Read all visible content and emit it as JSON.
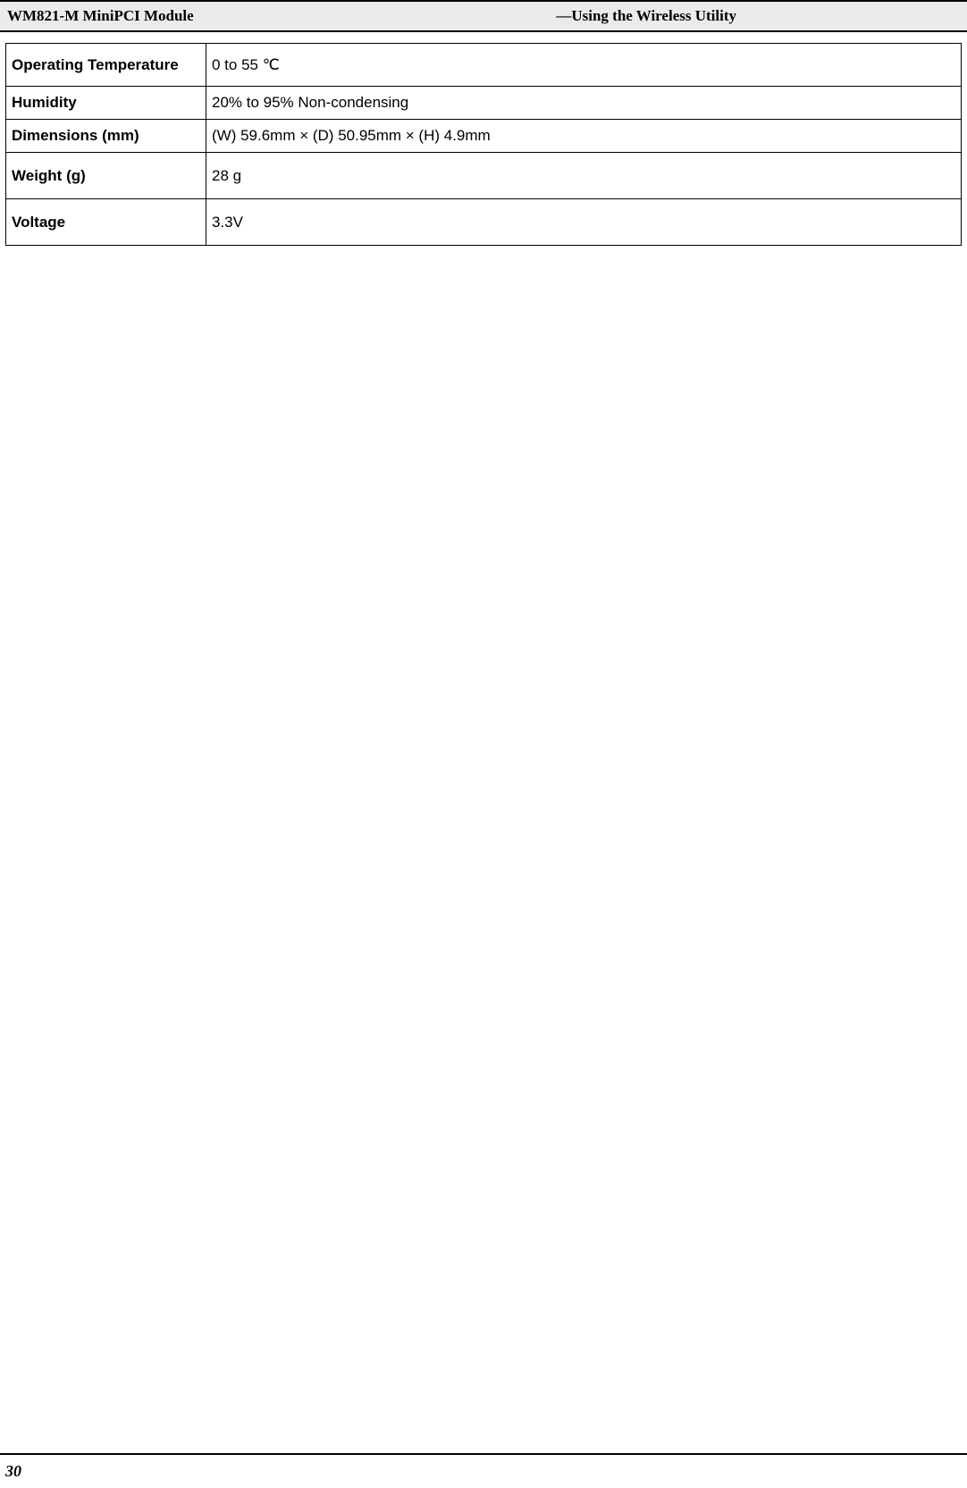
{
  "header": {
    "left": "WM821-M MiniPCI Module",
    "right": "—Using the Wireless Utility"
  },
  "table": {
    "rows": [
      {
        "label": "Operating Temperature",
        "value": "0 to 55 ℃",
        "heightClass": "row-tall"
      },
      {
        "label": "Humidity",
        "value": "20% to 95% Non-condensing",
        "heightClass": "row-short"
      },
      {
        "label": "Dimensions (mm)",
        "value": "(W)  59.6mm × (D) 50.95mm × (H) 4.9mm",
        "heightClass": "row-short"
      },
      {
        "label": "Weight (g)",
        "value": "28 g",
        "heightClass": "row-medium"
      },
      {
        "label": "Voltage",
        "value": "3.3V",
        "heightClass": "row-medium"
      }
    ]
  },
  "footer": {
    "pageNumber": "30"
  },
  "styling": {
    "pageWidth": 1082,
    "pageHeight": 1665,
    "backgroundColor": "#ffffff",
    "headerBackgroundColor": "#ebebeb",
    "borderColor": "#000000",
    "headerFontSize": 17,
    "tableFontSize": 17,
    "pageNumberFontSize": 18,
    "labelCellWidth": 224
  }
}
